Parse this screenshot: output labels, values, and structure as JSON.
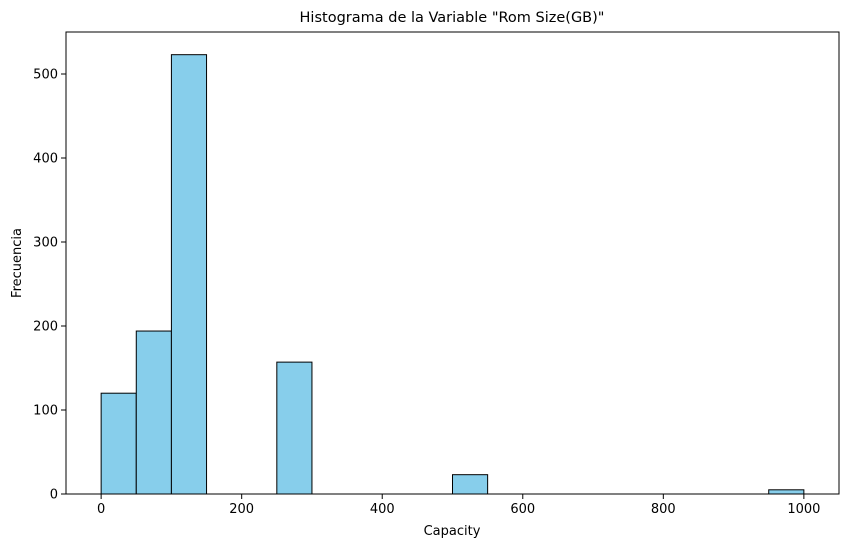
{
  "chart_data": {
    "type": "bar",
    "title": "Histograma de la Variable \"Rom Size(GB)\"",
    "xlabel": "Capacity",
    "ylabel": "Frecuencia",
    "xlim": [
      -50,
      1050
    ],
    "ylim": [
      0,
      550
    ],
    "xticks": [
      0,
      200,
      400,
      600,
      800,
      1000
    ],
    "yticks": [
      0,
      100,
      200,
      300,
      400,
      500
    ],
    "bin_width": 50,
    "bins": [
      {
        "start": 0,
        "count": 120
      },
      {
        "start": 50,
        "count": 194
      },
      {
        "start": 100,
        "count": 523
      },
      {
        "start": 150,
        "count": 0
      },
      {
        "start": 200,
        "count": 0
      },
      {
        "start": 250,
        "count": 157
      },
      {
        "start": 300,
        "count": 0
      },
      {
        "start": 350,
        "count": 0
      },
      {
        "start": 400,
        "count": 0
      },
      {
        "start": 450,
        "count": 0
      },
      {
        "start": 500,
        "count": 23
      },
      {
        "start": 550,
        "count": 0
      },
      {
        "start": 600,
        "count": 0
      },
      {
        "start": 650,
        "count": 0
      },
      {
        "start": 700,
        "count": 0
      },
      {
        "start": 750,
        "count": 0
      },
      {
        "start": 800,
        "count": 0
      },
      {
        "start": 850,
        "count": 0
      },
      {
        "start": 900,
        "count": 0
      },
      {
        "start": 950,
        "count": 5
      }
    ],
    "bar_color": "#87ceeb",
    "edge_color": "#000000",
    "grid": false,
    "legend": "none"
  }
}
